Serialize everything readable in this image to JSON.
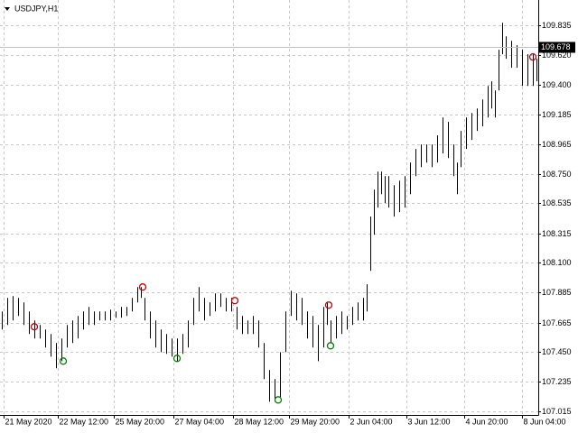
{
  "chart_data": {
    "type": "ohlc",
    "title": "USDJPY,H1",
    "xlim": [
      -1,
      297
    ],
    "ylim": [
      106.99,
      110.02
    ],
    "xticks": [
      {
        "value": 1,
        "label": "21 May 2020"
      },
      {
        "value": 31,
        "label": "22 May 12:00"
      },
      {
        "value": 62,
        "label": "25 May 20:00"
      },
      {
        "value": 95,
        "label": "27 May 04:00"
      },
      {
        "value": 128,
        "label": "28 May 12:00"
      },
      {
        "value": 159,
        "label": "29 May 20:00"
      },
      {
        "value": 192,
        "label": "2 Jun 04:00"
      },
      {
        "value": 224,
        "label": "3 Jun 12:00"
      },
      {
        "value": 256,
        "label": "4 Jun 20:00"
      },
      {
        "value": 288,
        "label": "8 Jun 04:00"
      }
    ],
    "yticks": [
      109.835,
      {
        "value": 109.62,
        "label": "109.620"
      },
      {
        "value": 109.4,
        "label": "109.400"
      },
      109.185,
      108.965,
      {
        "value": 108.75,
        "label": "108.750"
      },
      108.535,
      108.315,
      {
        "value": 108.1,
        "label": "108.100"
      },
      107.885,
      107.665,
      {
        "value": 107.45,
        "label": "107.450"
      },
      107.235,
      107.015
    ],
    "grid": true,
    "last_price": 109.678,
    "bars": {
      "color": "#000000",
      "x": [
        0,
        3,
        6,
        9,
        12,
        15,
        18,
        21,
        24,
        27,
        30,
        33,
        36,
        39,
        42,
        45,
        48,
        51,
        54,
        57,
        60,
        63,
        66,
        69,
        72,
        75,
        77,
        79,
        82,
        85,
        88,
        91,
        94,
        97,
        100,
        103,
        106,
        109,
        112,
        115,
        118,
        121,
        124,
        127,
        130,
        133,
        136,
        139,
        142,
        145,
        148,
        151,
        154,
        157,
        160,
        163,
        166,
        169,
        172,
        175,
        178,
        180,
        182,
        185,
        188,
        191,
        194,
        197,
        200,
        202,
        204,
        206,
        208,
        210,
        212,
        214,
        217,
        220,
        223,
        226,
        229,
        232,
        235,
        238,
        241,
        244,
        247,
        250,
        252,
        254,
        257,
        260,
        263,
        266,
        269,
        271,
        273,
        275,
        277,
        279,
        282,
        285,
        288,
        291,
        294,
        296
      ],
      "high": [
        107.746,
        107.845,
        107.858,
        107.845,
        107.812,
        107.746,
        107.68,
        107.647,
        107.614,
        107.581,
        107.515,
        107.548,
        107.647,
        107.68,
        107.713,
        107.746,
        107.779,
        107.746,
        107.746,
        107.746,
        107.759,
        107.746,
        107.779,
        107.779,
        107.845,
        107.924,
        107.924,
        107.845,
        107.746,
        107.68,
        107.614,
        107.581,
        107.548,
        107.548,
        107.581,
        107.68,
        107.845,
        107.924,
        107.845,
        107.812,
        107.878,
        107.878,
        107.845,
        107.845,
        107.779,
        107.713,
        107.68,
        107.713,
        107.68,
        107.515,
        107.318,
        107.252,
        107.449,
        107.746,
        107.897,
        107.878,
        107.845,
        107.746,
        107.713,
        107.647,
        107.779,
        107.812,
        107.68,
        107.713,
        107.746,
        107.713,
        107.779,
        107.812,
        107.845,
        107.944,
        108.438,
        108.635,
        108.767,
        108.767,
        108.734,
        108.734,
        108.668,
        108.701,
        108.734,
        108.833,
        108.932,
        108.965,
        108.965,
        108.965,
        109.031,
        109.162,
        109.13,
        108.965,
        108.833,
        109.064,
        109.162,
        109.195,
        109.228,
        109.294,
        109.393,
        109.426,
        109.36,
        109.657,
        109.854,
        109.755,
        109.722,
        109.69,
        109.657,
        109.624,
        109.624,
        109.591
      ],
      "low": [
        107.614,
        107.647,
        107.68,
        107.713,
        107.647,
        107.581,
        107.548,
        107.548,
        107.482,
        107.416,
        107.331,
        107.383,
        107.482,
        107.515,
        107.548,
        107.614,
        107.647,
        107.647,
        107.68,
        107.68,
        107.68,
        107.7,
        107.7,
        107.713,
        107.746,
        107.812,
        107.845,
        107.68,
        107.548,
        107.482,
        107.449,
        107.436,
        107.416,
        107.383,
        107.436,
        107.482,
        107.647,
        107.746,
        107.68,
        107.713,
        107.746,
        107.779,
        107.746,
        107.746,
        107.614,
        107.581,
        107.581,
        107.581,
        107.482,
        107.252,
        107.087,
        107.087,
        107.12,
        107.449,
        107.713,
        107.68,
        107.647,
        107.548,
        107.482,
        107.383,
        107.482,
        107.647,
        107.515,
        107.548,
        107.581,
        107.614,
        107.647,
        107.68,
        107.68,
        107.746,
        108.042,
        108.306,
        108.504,
        108.602,
        108.537,
        108.504,
        108.438,
        108.471,
        108.504,
        108.602,
        108.734,
        108.8,
        108.833,
        108.8,
        108.833,
        108.899,
        108.866,
        108.734,
        108.602,
        108.8,
        108.932,
        108.998,
        109.064,
        109.097,
        109.162,
        109.228,
        109.162,
        109.36,
        109.624,
        109.591,
        109.525,
        109.525,
        109.393,
        109.393,
        109.393,
        109.426
      ]
    },
    "sell_signals": {
      "color": "#c00000",
      "x": [
        18,
        78,
        129,
        181,
        294
      ],
      "y": [
        107.634,
        107.924,
        107.825,
        107.792,
        109.604
      ]
    },
    "buy_signals": {
      "color": "#008000",
      "x": [
        34,
        97,
        153,
        182
      ],
      "y": [
        107.383,
        107.403,
        107.1,
        107.495
      ]
    }
  }
}
